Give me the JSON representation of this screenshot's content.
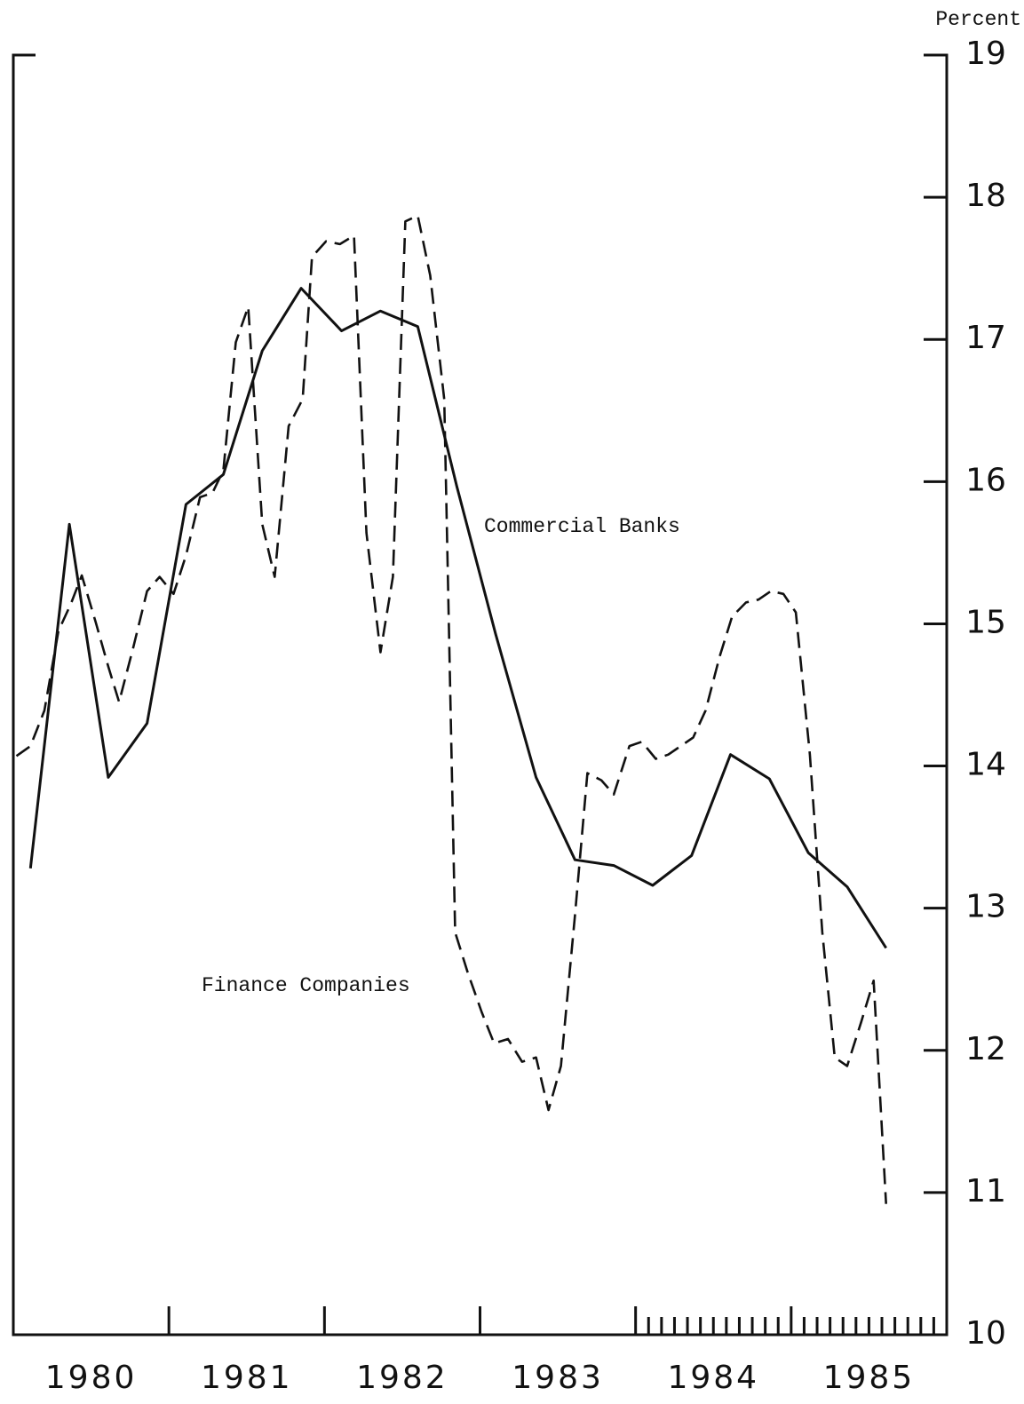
{
  "chart_data": {
    "type": "line",
    "y_axis_label": "Percent",
    "annotations": [
      "Commercial Banks",
      "Finance Companies"
    ],
    "categories": [
      "1980",
      "1981",
      "1982",
      "1983",
      "1984",
      "1985"
    ],
    "xlim": [
      1980,
      1986
    ],
    "ylim": [
      10,
      19
    ],
    "yticks": [
      10,
      11,
      12,
      13,
      14,
      15,
      16,
      17,
      18,
      19
    ],
    "series": [
      {
        "name": "Commercial Banks",
        "color": "#111111",
        "dash": false,
        "x": [
          1980.11,
          1980.36,
          1980.61,
          1980.86,
          1981.11,
          1981.35,
          1981.6,
          1981.85,
          1982.11,
          1982.36,
          1982.6,
          1982.85,
          1983.1,
          1983.36,
          1983.61,
          1983.86,
          1984.11,
          1984.36,
          1984.61,
          1984.86,
          1985.11,
          1985.36,
          1985.61
        ],
        "values": [
          13.28,
          15.7,
          13.92,
          14.3,
          15.84,
          16.05,
          16.92,
          17.36,
          17.06,
          17.2,
          17.09,
          15.97,
          14.93,
          13.92,
          13.34,
          13.3,
          13.16,
          13.37,
          14.08,
          13.91,
          13.39,
          13.15,
          12.72
        ]
      },
      {
        "name": "Finance Companies",
        "color": "#111111",
        "dash": true,
        "x": [
          1980.02,
          1980.11,
          1980.2,
          1980.29,
          1980.37,
          1980.44,
          1980.53,
          1980.61,
          1980.68,
          1980.77,
          1980.86,
          1980.94,
          1981.03,
          1981.11,
          1981.2,
          1981.28,
          1981.35,
          1981.43,
          1981.51,
          1981.6,
          1981.68,
          1981.77,
          1981.86,
          1981.92,
          1982.01,
          1982.1,
          1982.19,
          1982.27,
          1982.36,
          1982.44,
          1982.52,
          1982.6,
          1982.68,
          1982.77,
          1982.84,
          1982.92,
          1983.01,
          1983.09,
          1983.18,
          1983.27,
          1983.36,
          1983.44,
          1983.52,
          1983.61,
          1983.69,
          1983.78,
          1983.86,
          1983.96,
          1984.04,
          1984.13,
          1984.21,
          1984.29,
          1984.37,
          1984.45,
          1984.54,
          1984.62,
          1984.71,
          1984.79,
          1984.87,
          1984.95,
          1985.03,
          1985.12,
          1985.2,
          1985.28,
          1985.36,
          1985.45,
          1985.53,
          1985.61
        ],
        "values": [
          14.07,
          14.14,
          14.39,
          14.95,
          15.14,
          15.34,
          15.01,
          14.7,
          14.45,
          14.83,
          15.23,
          15.33,
          15.21,
          15.48,
          15.89,
          15.92,
          16.08,
          16.98,
          17.23,
          15.7,
          15.33,
          16.39,
          16.58,
          17.58,
          17.69,
          17.67,
          17.73,
          15.64,
          14.8,
          15.33,
          17.83,
          17.87,
          17.45,
          16.58,
          12.83,
          12.55,
          12.27,
          12.05,
          12.08,
          11.92,
          11.95,
          11.58,
          11.89,
          12.95,
          13.95,
          13.9,
          13.8,
          14.14,
          14.17,
          14.05,
          14.08,
          14.14,
          14.2,
          14.39,
          14.77,
          15.05,
          15.15,
          15.17,
          15.23,
          15.21,
          15.08,
          14.08,
          12.83,
          11.95,
          11.89,
          12.2,
          12.49,
          10.92
        ]
      }
    ]
  }
}
